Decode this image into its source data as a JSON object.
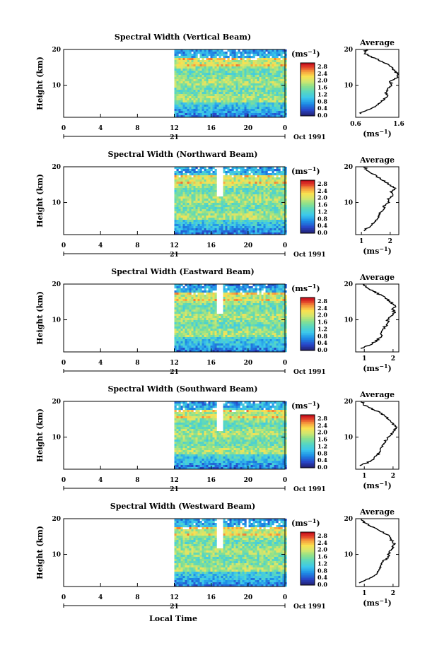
{
  "footer": {
    "xlabel": "Local Time"
  },
  "chart_data": [
    {
      "type": "heatmap",
      "title": "Spectral Width (Vertical Beam)",
      "ylabel": "Height (km)",
      "yticks": [
        "20",
        "10"
      ],
      "xticks": [
        "0",
        "4",
        "8",
        "12",
        "16",
        "20",
        "0"
      ],
      "xlim": [
        0,
        24
      ],
      "ylim": [
        1,
        20
      ],
      "data_start_hour": 12,
      "gap_hours": [],
      "day_label": "21",
      "date_label": "Oct 1991",
      "colorbar": {
        "unit": "(ms",
        "exp": "−1",
        "unit_close": ")",
        "labels": [
          "2.8",
          "2.4",
          "2.0",
          "1.6",
          "1.2",
          "0.8",
          "0.4",
          "0.0"
        ]
      },
      "profile": {
        "title": "Average",
        "xticks": [
          "0.6",
          "1.6"
        ],
        "xlim": [
          0.6,
          1.6
        ],
        "xlabel": "(ms",
        "xlabel_exp": "−1",
        "xlabel_close": ")",
        "heights": [
          2,
          3,
          4,
          5,
          6,
          7,
          8,
          9,
          10,
          11,
          12,
          13,
          14,
          15,
          16,
          17,
          18,
          19,
          20
        ],
        "values": [
          0.7,
          0.85,
          1.05,
          1.15,
          1.25,
          1.35,
          1.3,
          1.35,
          1.45,
          1.4,
          1.55,
          1.6,
          1.5,
          1.45,
          1.3,
          1.15,
          0.95,
          0.8,
          0.85
        ]
      }
    },
    {
      "type": "heatmap",
      "title": "Spectral Width (Northward Beam)",
      "ylabel": "Height (km)",
      "yticks": [
        "20",
        "10"
      ],
      "xticks": [
        "0",
        "4",
        "8",
        "12",
        "16",
        "20",
        "0"
      ],
      "xlim": [
        0,
        24
      ],
      "ylim": [
        1,
        20
      ],
      "data_start_hour": 12,
      "gap_hours": [
        16.5,
        17.2
      ],
      "day_label": "21",
      "date_label": "Oct 1991",
      "colorbar": {
        "unit": "(ms",
        "exp": "−1",
        "unit_close": ")",
        "labels": [
          "2.8",
          "2.4",
          "2.0",
          "1.6",
          "1.2",
          "0.8",
          "0.4",
          "0.0"
        ]
      },
      "profile": {
        "title": "Average",
        "xticks": [
          "1",
          "2"
        ],
        "xlim": [
          0.8,
          2.3
        ],
        "xlabel": "(ms",
        "xlabel_exp": "−1",
        "xlabel_close": ")",
        "heights": [
          2,
          3,
          4,
          5,
          6,
          7,
          8,
          9,
          10,
          11,
          12,
          13,
          14,
          15,
          16,
          17,
          18,
          19,
          20
        ],
        "values": [
          1.05,
          1.25,
          1.4,
          1.5,
          1.6,
          1.65,
          1.75,
          1.8,
          1.95,
          1.9,
          2.1,
          2.05,
          2.2,
          1.95,
          1.8,
          1.6,
          1.4,
          1.2,
          1.1
        ]
      }
    },
    {
      "type": "heatmap",
      "title": "Spectral Width (Eastward Beam)",
      "ylabel": "Height (km)",
      "yticks": [
        "20",
        "10"
      ],
      "xticks": [
        "0",
        "4",
        "8",
        "12",
        "16",
        "20",
        "0"
      ],
      "xlim": [
        0,
        24
      ],
      "ylim": [
        1,
        20
      ],
      "data_start_hour": 12,
      "gap_hours": [
        16.5,
        17.2
      ],
      "day_label": "21",
      "date_label": "Oct 1991",
      "colorbar": {
        "unit": "(ms",
        "exp": "−1",
        "unit_close": ")",
        "labels": [
          "2.8",
          "2.4",
          "2.0",
          "1.6",
          "1.2",
          "0.8",
          "0.4",
          "0.0"
        ]
      },
      "profile": {
        "title": "Average",
        "xticks": [
          "1",
          "2"
        ],
        "xlim": [
          0.7,
          2.2
        ],
        "xlabel": "(ms",
        "xlabel_exp": "−1",
        "xlabel_close": ")",
        "heights": [
          2,
          3,
          4,
          5,
          6,
          7,
          8,
          9,
          10,
          11,
          12,
          13,
          14,
          15,
          16,
          17,
          18,
          19,
          20
        ],
        "values": [
          0.9,
          1.2,
          1.4,
          1.55,
          1.6,
          1.65,
          1.7,
          1.85,
          1.8,
          1.95,
          2.05,
          2.0,
          2.1,
          1.9,
          1.75,
          1.55,
          1.3,
          1.1,
          0.95
        ]
      }
    },
    {
      "type": "heatmap",
      "title": "Spectral Width (Southward Beam)",
      "ylabel": "Height (km)",
      "yticks": [
        "20",
        "10"
      ],
      "xticks": [
        "0",
        "4",
        "8",
        "12",
        "16",
        "20",
        "0"
      ],
      "xlim": [
        0,
        24
      ],
      "ylim": [
        1,
        20
      ],
      "data_start_hour": 12,
      "gap_hours": [
        16.5,
        17.2
      ],
      "day_label": "21",
      "date_label": "Oct 1991",
      "colorbar": {
        "unit": "(ms",
        "exp": "−1",
        "unit_close": ")",
        "labels": [
          "2.8",
          "2.4",
          "2.0",
          "1.6",
          "1.2",
          "0.8",
          "0.4",
          "0.0"
        ]
      },
      "profile": {
        "title": "Average",
        "xticks": [
          "1",
          "2"
        ],
        "xlim": [
          0.7,
          2.2
        ],
        "xlabel": "(ms",
        "xlabel_exp": "−1",
        "xlabel_close": ")",
        "heights": [
          2,
          3,
          4,
          5,
          6,
          7,
          8,
          9,
          10,
          11,
          12,
          13,
          14,
          15,
          16,
          17,
          18,
          19,
          20
        ],
        "values": [
          0.85,
          1.15,
          1.35,
          1.45,
          1.55,
          1.6,
          1.65,
          1.75,
          1.85,
          1.95,
          2.05,
          2.1,
          1.95,
          1.85,
          1.7,
          1.5,
          1.25,
          1.0,
          0.9
        ]
      }
    },
    {
      "type": "heatmap",
      "title": "Spectral Width (Westward Beam)",
      "ylabel": "Height (km)",
      "yticks": [
        "20",
        "10"
      ],
      "xticks": [
        "0",
        "4",
        "8",
        "12",
        "16",
        "20",
        "0"
      ],
      "xlim": [
        0,
        24
      ],
      "ylim": [
        1,
        20
      ],
      "data_start_hour": 12,
      "gap_hours": [
        16.5,
        17.2
      ],
      "day_label": "21",
      "date_label": "Oct 1991",
      "colorbar": {
        "unit": "(ms",
        "exp": "−1",
        "unit_close": ")",
        "labels": [
          "2.8",
          "2.4",
          "2.0",
          "1.6",
          "1.2",
          "0.8",
          "0.4",
          "0.0"
        ]
      },
      "profile": {
        "title": "Average",
        "xticks": [
          "1",
          "2"
        ],
        "xlim": [
          0.7,
          2.2
        ],
        "xlabel": "(ms",
        "xlabel_exp": "−1",
        "xlabel_close": ")",
        "heights": [
          2,
          3,
          4,
          5,
          6,
          7,
          8,
          9,
          10,
          11,
          12,
          13,
          14,
          15,
          16,
          17,
          18,
          19,
          20
        ],
        "values": [
          0.85,
          1.1,
          1.35,
          1.45,
          1.55,
          1.6,
          1.65,
          1.8,
          1.85,
          1.9,
          2.0,
          2.05,
          1.95,
          1.9,
          1.7,
          1.45,
          1.2,
          1.0,
          0.9
        ]
      }
    }
  ]
}
